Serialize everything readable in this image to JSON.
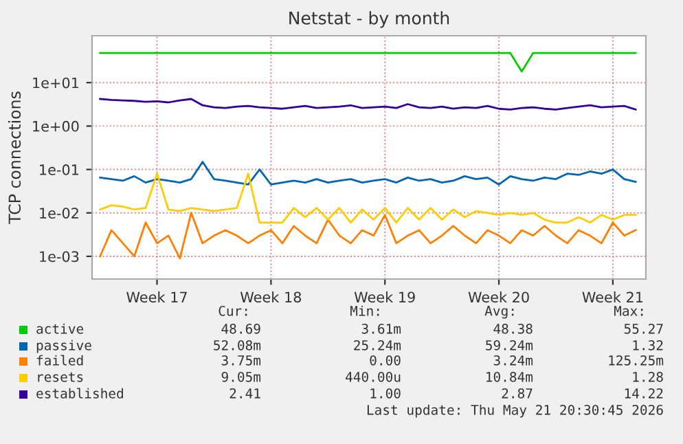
{
  "chart_data": {
    "type": "line",
    "title": "Netstat - by month",
    "ylabel": "TCP connections",
    "log": "y",
    "grid": true,
    "legend": "bottom",
    "line_style": "solid",
    "marker": "none",
    "categories": [
      null,
      null,
      null,
      null,
      null,
      "Week 17",
      null,
      null,
      null,
      null,
      null,
      null,
      null,
      null,
      null,
      "Week 18",
      null,
      null,
      null,
      null,
      null,
      null,
      null,
      null,
      null,
      "Week 19",
      null,
      null,
      null,
      null,
      null,
      null,
      null,
      null,
      null,
      "Week 20",
      null,
      null,
      null,
      null,
      null,
      null,
      null,
      null,
      null,
      "Week 21",
      null,
      null
    ],
    "ylim": [
      0.0003,
      120
    ],
    "yticks": [
      {
        "value": 0.001,
        "label": "1e-03"
      },
      {
        "value": 0.01,
        "label": "1e-02"
      },
      {
        "value": 0.1,
        "label": "1e-01"
      },
      {
        "value": 1,
        "label": "1e+00"
      },
      {
        "value": 10,
        "label": "1e+01"
      }
    ],
    "series": [
      {
        "name": "active",
        "color": "#00cc00",
        "values": [
          48,
          48,
          48,
          48,
          48,
          48,
          48,
          48,
          48,
          48,
          48,
          48,
          48,
          48,
          48,
          48,
          48,
          48,
          48,
          48,
          48,
          48,
          48,
          48,
          48,
          48,
          48,
          48,
          48,
          48,
          48,
          48,
          48,
          48,
          48,
          48,
          48,
          18,
          48,
          48,
          48,
          48,
          48,
          48,
          48,
          48,
          48,
          48
        ]
      },
      {
        "name": "passive",
        "color": "#0066b3",
        "values": [
          0.065,
          0.06,
          0.055,
          0.07,
          0.05,
          0.06,
          0.055,
          0.05,
          0.06,
          0.15,
          0.06,
          0.055,
          0.05,
          0.045,
          0.1,
          0.045,
          0.05,
          0.055,
          0.05,
          0.06,
          0.05,
          0.055,
          0.06,
          0.05,
          0.055,
          0.06,
          0.05,
          0.065,
          0.055,
          0.06,
          0.05,
          0.055,
          0.07,
          0.06,
          0.065,
          0.045,
          0.07,
          0.06,
          0.055,
          0.065,
          0.06,
          0.08,
          0.075,
          0.09,
          0.08,
          0.1,
          0.06,
          0.052
        ]
      },
      {
        "name": "failed",
        "color": "#ff8000",
        "values": [
          0.001,
          0.004,
          0.002,
          0.001,
          0.006,
          0.002,
          0.003,
          0.0009,
          0.01,
          0.002,
          0.003,
          0.004,
          0.003,
          0.002,
          0.003,
          0.004,
          0.002,
          0.005,
          0.003,
          0.002,
          0.007,
          0.003,
          0.002,
          0.004,
          0.003,
          0.009,
          0.002,
          0.003,
          0.004,
          0.002,
          0.003,
          0.005,
          0.003,
          0.002,
          0.004,
          0.003,
          0.002,
          0.004,
          0.003,
          0.005,
          0.003,
          0.002,
          0.004,
          0.003,
          0.002,
          0.006,
          0.003,
          0.004
        ]
      },
      {
        "name": "resets",
        "color": "#ffcc00",
        "values": [
          0.012,
          0.015,
          0.014,
          0.012,
          0.013,
          0.08,
          0.012,
          0.011,
          0.013,
          0.012,
          0.011,
          0.012,
          0.013,
          0.08,
          0.006,
          0.006,
          0.006,
          0.013,
          0.008,
          0.013,
          0.007,
          0.013,
          0.006,
          0.012,
          0.007,
          0.013,
          0.006,
          0.013,
          0.007,
          0.013,
          0.007,
          0.012,
          0.008,
          0.011,
          0.01,
          0.009,
          0.01,
          0.009,
          0.01,
          0.007,
          0.006,
          0.006,
          0.008,
          0.006,
          0.009,
          0.007,
          0.009,
          0.009
        ]
      },
      {
        "name": "established",
        "color": "#330099",
        "values": [
          4.2,
          4.0,
          3.9,
          3.8,
          3.6,
          3.7,
          3.5,
          3.9,
          4.2,
          3.0,
          2.7,
          2.6,
          2.8,
          2.9,
          2.7,
          2.6,
          2.5,
          2.7,
          2.9,
          2.6,
          2.7,
          2.8,
          3.0,
          2.6,
          2.7,
          2.8,
          2.6,
          3.2,
          2.7,
          2.6,
          2.8,
          2.5,
          2.7,
          2.6,
          2.9,
          2.5,
          2.4,
          2.6,
          2.7,
          2.5,
          2.4,
          2.6,
          2.8,
          3.0,
          2.7,
          2.8,
          2.9,
          2.4
        ]
      }
    ],
    "annotations": [
      "Cur:",
      "Min:",
      "Avg:",
      "Max:",
      "48.69",
      "3.61m",
      "48.38",
      "55.27",
      "52.08m",
      "25.24m",
      "59.24m",
      "1.32",
      "3.75m",
      "0.00",
      "3.24m",
      "125.25m",
      "9.05m",
      "440.00u",
      "10.84m",
      "1.28",
      "2.41",
      "1.00",
      "2.87",
      "14.22",
      "Last update: Thu May 21 20:30:45 2026"
    ]
  }
}
